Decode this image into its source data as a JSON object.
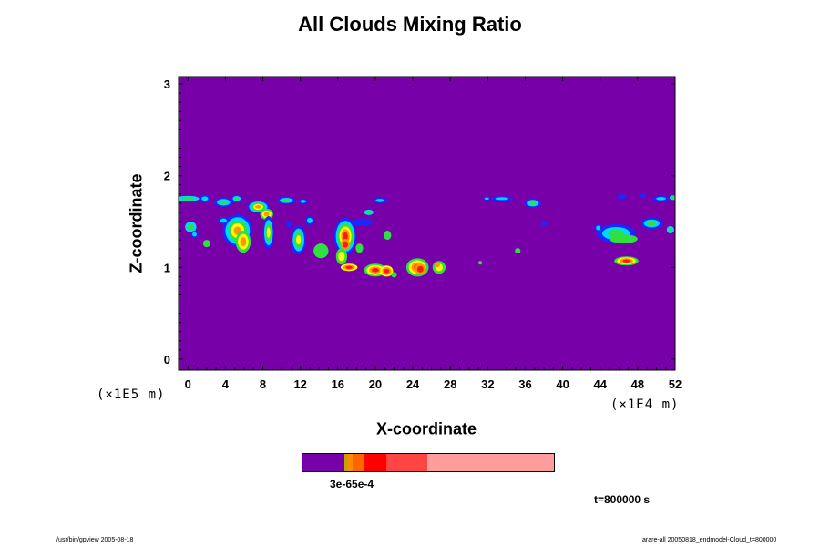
{
  "chart_data": {
    "type": "heatmap",
    "title": "All Clouds Mixing Ratio",
    "xlabel": "X-coordinate",
    "ylabel": "Z-coordinate",
    "x_scale_label": "(×1E4 m)",
    "y_scale_label": "(×1E5 m)",
    "xlim": [
      -1,
      52
    ],
    "ylim": [
      -0.12,
      3.08
    ],
    "x_ticks": [
      "0",
      "4",
      "8",
      "12",
      "16",
      "20",
      "24",
      "28",
      "32",
      "36",
      "40",
      "44",
      "48",
      "52"
    ],
    "x_tick_values": [
      0,
      4,
      8,
      12,
      16,
      20,
      24,
      28,
      32,
      36,
      40,
      44,
      48,
      52
    ],
    "y_ticks": [
      "0",
      "1",
      "2",
      "3"
    ],
    "y_tick_values": [
      0,
      1,
      2,
      3
    ],
    "background_color": "#7700a8",
    "colorbar": {
      "label": "3e-6 5e-6 1e-5 5e-4",
      "label_overlap_text": "3e-65e-4",
      "segments": [
        {
          "color": "#7700a8"
        },
        {
          "color": "#c8a000"
        },
        {
          "color": "#ff8c00"
        },
        {
          "color": "#ff6600"
        },
        {
          "color": "#ff0000"
        },
        {
          "color": "#ff4444"
        },
        {
          "color": "#ff9c9c"
        }
      ]
    },
    "contour_levels": [
      "blue",
      "cyan",
      "green",
      "yellow",
      "orange",
      "red"
    ],
    "level_colors": {
      "blue": "#1828ff",
      "cyan": "#00d8ff",
      "green": "#30e040",
      "yellow": "#ffff00",
      "orange": "#ff9800",
      "red": "#ff1818"
    },
    "cells": [
      {
        "x": 0.0,
        "z": 1.75,
        "rx": 1.2,
        "rz": 0.03,
        "levels": [
          "cyan",
          "green"
        ]
      },
      {
        "x": 1.8,
        "z": 1.75,
        "rx": 0.6,
        "rz": 0.04,
        "levels": [
          "blue",
          "cyan"
        ]
      },
      {
        "x": 3.8,
        "z": 1.71,
        "rx": 1.0,
        "rz": 0.05,
        "levels": [
          "blue",
          "cyan",
          "green"
        ]
      },
      {
        "x": 5.2,
        "z": 1.75,
        "rx": 0.6,
        "rz": 0.04,
        "levels": [
          "blue",
          "cyan",
          "green"
        ]
      },
      {
        "x": 7.5,
        "z": 1.66,
        "rx": 1.2,
        "rz": 0.07,
        "levels": [
          "blue",
          "cyan",
          "green",
          "yellow",
          "orange"
        ]
      },
      {
        "x": 8.4,
        "z": 1.58,
        "rx": 0.7,
        "rz": 0.06,
        "levels": [
          "green",
          "yellow",
          "orange"
        ]
      },
      {
        "x": 10.5,
        "z": 1.73,
        "rx": 1.0,
        "rz": 0.04,
        "levels": [
          "blue",
          "cyan",
          "green"
        ]
      },
      {
        "x": 12.3,
        "z": 1.72,
        "rx": 0.5,
        "rz": 0.03,
        "levels": [
          "blue",
          "cyan"
        ]
      },
      {
        "x": 0.3,
        "z": 1.44,
        "rx": 0.6,
        "rz": 0.06,
        "levels": [
          "cyan",
          "green"
        ]
      },
      {
        "x": 0.7,
        "z": 1.36,
        "rx": 0.4,
        "rz": 0.04,
        "levels": [
          "blue",
          "cyan"
        ]
      },
      {
        "x": 5.3,
        "z": 1.4,
        "rx": 1.6,
        "rz": 0.18,
        "levels": [
          "blue",
          "cyan",
          "green",
          "yellow",
          "orange"
        ]
      },
      {
        "x": 5.9,
        "z": 1.28,
        "rx": 0.8,
        "rz": 0.12,
        "levels": [
          "green",
          "yellow",
          "orange"
        ]
      },
      {
        "x": 3.8,
        "z": 1.51,
        "rx": 0.6,
        "rz": 0.04,
        "levels": [
          "blue",
          "cyan"
        ]
      },
      {
        "x": 8.6,
        "z": 1.38,
        "rx": 0.6,
        "rz": 0.18,
        "levels": [
          "blue",
          "cyan",
          "green",
          "yellow"
        ]
      },
      {
        "x": 2.0,
        "z": 1.26,
        "rx": 0.4,
        "rz": 0.04,
        "levels": [
          "green"
        ]
      },
      {
        "x": 11.8,
        "z": 1.3,
        "rx": 0.8,
        "rz": 0.16,
        "levels": [
          "blue",
          "cyan",
          "green",
          "yellow"
        ]
      },
      {
        "x": 13.0,
        "z": 1.51,
        "rx": 0.5,
        "rz": 0.05,
        "levels": [
          "blue",
          "cyan"
        ]
      },
      {
        "x": 14.2,
        "z": 1.18,
        "rx": 0.8,
        "rz": 0.08,
        "levels": [
          "green"
        ]
      },
      {
        "x": 10.8,
        "z": 1.47,
        "rx": 0.3,
        "rz": 0.04,
        "levels": [
          "blue"
        ]
      },
      {
        "x": 16.8,
        "z": 1.34,
        "rx": 1.2,
        "rz": 0.2,
        "levels": [
          "blue",
          "cyan",
          "green",
          "yellow",
          "orange",
          "red"
        ]
      },
      {
        "x": 16.8,
        "z": 1.25,
        "rx": 0.5,
        "rz": 0.06,
        "levels": [
          "orange",
          "red"
        ]
      },
      {
        "x": 16.4,
        "z": 1.12,
        "rx": 0.6,
        "rz": 0.09,
        "levels": [
          "green",
          "yellow"
        ]
      },
      {
        "x": 17.2,
        "z": 1.0,
        "rx": 0.9,
        "rz": 0.04,
        "levels": [
          "yellow",
          "orange",
          "red"
        ]
      },
      {
        "x": 18.6,
        "z": 1.49,
        "rx": 1.1,
        "rz": 0.04,
        "levels": [
          "blue"
        ]
      },
      {
        "x": 18.3,
        "z": 1.21,
        "rx": 0.4,
        "rz": 0.05,
        "levels": [
          "green"
        ]
      },
      {
        "x": 19.3,
        "z": 1.6,
        "rx": 0.5,
        "rz": 0.03,
        "levels": [
          "cyan",
          "green"
        ]
      },
      {
        "x": 20.5,
        "z": 1.73,
        "rx": 0.8,
        "rz": 0.03,
        "levels": [
          "blue",
          "cyan"
        ]
      },
      {
        "x": 21.3,
        "z": 1.35,
        "rx": 0.4,
        "rz": 0.05,
        "levels": [
          "green"
        ]
      },
      {
        "x": 20.0,
        "z": 0.97,
        "rx": 1.2,
        "rz": 0.07,
        "levels": [
          "green",
          "yellow",
          "orange",
          "red"
        ]
      },
      {
        "x": 21.2,
        "z": 0.96,
        "rx": 0.7,
        "rz": 0.06,
        "levels": [
          "yellow",
          "orange",
          "red"
        ]
      },
      {
        "x": 22.0,
        "z": 0.92,
        "rx": 0.3,
        "rz": 0.03,
        "levels": [
          "green"
        ]
      },
      {
        "x": 24.5,
        "z": 1.0,
        "rx": 1.2,
        "rz": 0.1,
        "levels": [
          "green",
          "yellow",
          "orange",
          "red"
        ]
      },
      {
        "x": 24.8,
        "z": 0.98,
        "rx": 0.6,
        "rz": 0.06,
        "levels": [
          "orange",
          "red"
        ]
      },
      {
        "x": 26.8,
        "z": 1.0,
        "rx": 0.7,
        "rz": 0.07,
        "levels": [
          "green",
          "yellow"
        ]
      },
      {
        "x": 26.6,
        "z": 1.03,
        "rx": 0.3,
        "rz": 0.03,
        "levels": [
          "orange"
        ]
      },
      {
        "x": 31.9,
        "z": 1.75,
        "rx": 0.4,
        "rz": 0.02,
        "levels": [
          "blue",
          "cyan"
        ]
      },
      {
        "x": 33.5,
        "z": 1.75,
        "rx": 1.2,
        "rz": 0.025,
        "levels": [
          "blue",
          "cyan"
        ]
      },
      {
        "x": 36.8,
        "z": 1.7,
        "rx": 0.9,
        "rz": 0.05,
        "levels": [
          "blue",
          "cyan",
          "green"
        ]
      },
      {
        "x": 38.0,
        "z": 1.48,
        "rx": 0.3,
        "rz": 0.03,
        "levels": [
          "blue"
        ]
      },
      {
        "x": 35.2,
        "z": 1.18,
        "rx": 0.3,
        "rz": 0.03,
        "levels": [
          "green"
        ]
      },
      {
        "x": 31.2,
        "z": 1.05,
        "rx": 0.2,
        "rz": 0.02,
        "levels": [
          "green"
        ]
      },
      {
        "x": 45.7,
        "z": 1.37,
        "rx": 2.1,
        "rz": 0.1,
        "levels": [
          "blue",
          "cyan",
          "green"
        ]
      },
      {
        "x": 43.8,
        "z": 1.43,
        "rx": 0.4,
        "rz": 0.04,
        "levels": [
          "blue",
          "cyan"
        ]
      },
      {
        "x": 46.5,
        "z": 1.31,
        "rx": 1.5,
        "rz": 0.05,
        "levels": [
          "green"
        ]
      },
      {
        "x": 49.5,
        "z": 1.48,
        "rx": 1.2,
        "rz": 0.06,
        "levels": [
          "blue",
          "cyan",
          "green"
        ]
      },
      {
        "x": 51.5,
        "z": 1.41,
        "rx": 0.4,
        "rz": 0.04,
        "levels": [
          "cyan",
          "green"
        ]
      },
      {
        "x": 46.3,
        "z": 1.77,
        "rx": 0.5,
        "rz": 0.025,
        "levels": [
          "blue"
        ]
      },
      {
        "x": 48.5,
        "z": 1.78,
        "rx": 0.4,
        "rz": 0.02,
        "levels": [
          "blue"
        ]
      },
      {
        "x": 50.5,
        "z": 1.75,
        "rx": 0.9,
        "rz": 0.03,
        "levels": [
          "blue",
          "cyan"
        ]
      },
      {
        "x": 51.8,
        "z": 1.76,
        "rx": 0.4,
        "rz": 0.025,
        "levels": [
          "cyan",
          "green"
        ]
      },
      {
        "x": 46.8,
        "z": 1.07,
        "rx": 1.3,
        "rz": 0.05,
        "levels": [
          "green",
          "yellow",
          "orange",
          "red"
        ]
      },
      {
        "x": 46.8,
        "z": 1.07,
        "rx": 0.7,
        "rz": 0.03,
        "levels": [
          "orange",
          "red"
        ]
      }
    ],
    "time_label": "t=800000 s",
    "footer_left": "/usr/bin/gpview 2005-08-18",
    "footer_right": "arare-all 20050818_endmodel-Cloud_t=800000"
  }
}
